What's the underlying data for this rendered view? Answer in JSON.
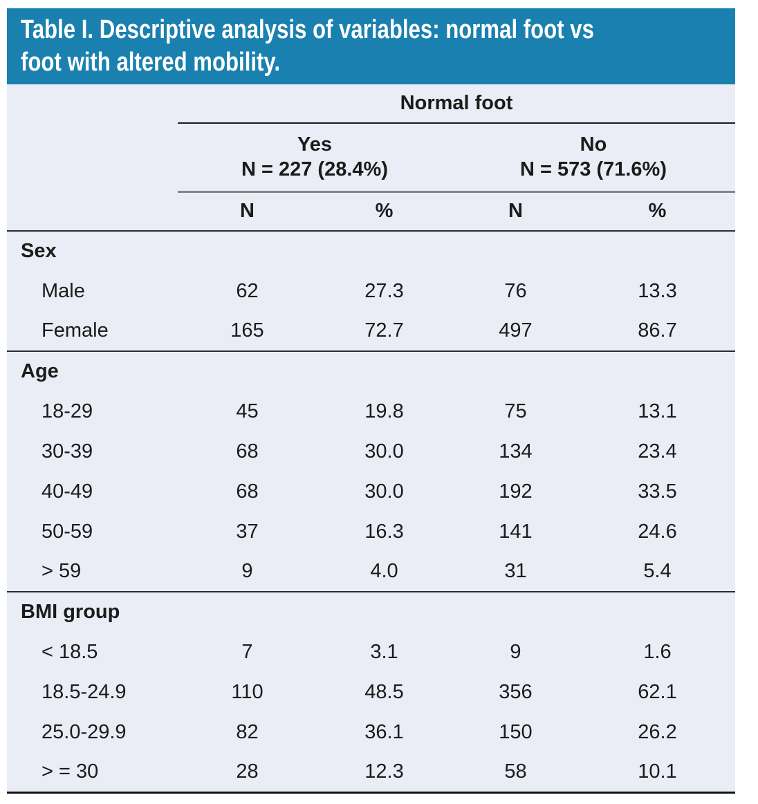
{
  "colors": {
    "header_bg": "#1a80af",
    "table_bg": "#eaedf5",
    "text": "#1b1b1b",
    "title_text": "#ffffff",
    "rule_dark": "#2b2b2b",
    "rule_gray": "#848484",
    "rule_black": "#111111"
  },
  "header": {
    "title_lines": [
      "Table I. Descriptive analysis of variables: normal foot vs",
      "foot with altered mobility."
    ],
    "span_label": "Normal foot",
    "groups": [
      {
        "label": "Yes",
        "sublabel": "N = 227 (28.4%)"
      },
      {
        "label": "No",
        "sublabel": "N = 573 (71.6%)"
      }
    ],
    "columns": [
      "N",
      "%",
      "N",
      "%"
    ]
  },
  "sections": [
    {
      "label": "Sex",
      "rows": [
        {
          "label": "Male",
          "values": [
            "62",
            "27.3",
            "76",
            "13.3"
          ]
        },
        {
          "label": "Female",
          "values": [
            "165",
            "72.7",
            "497",
            "86.7"
          ]
        }
      ]
    },
    {
      "label": "Age",
      "rows": [
        {
          "label": "18-29",
          "values": [
            "45",
            "19.8",
            "75",
            "13.1"
          ]
        },
        {
          "label": "30-39",
          "values": [
            "68",
            "30.0",
            "134",
            "23.4"
          ]
        },
        {
          "label": "40-49",
          "values": [
            "68",
            "30.0",
            "192",
            "33.5"
          ]
        },
        {
          "label": "50-59",
          "values": [
            "37",
            "16.3",
            "141",
            "24.6"
          ]
        },
        {
          "label": "> 59",
          "values": [
            "9",
            "4.0",
            "31",
            "5.4"
          ]
        }
      ]
    },
    {
      "label": "BMI group",
      "rows": [
        {
          "label": "< 18.5",
          "values": [
            "7",
            "3.1",
            "9",
            "1.6"
          ]
        },
        {
          "label": "18.5-24.9",
          "values": [
            "110",
            "48.5",
            "356",
            "62.1"
          ]
        },
        {
          "label": "25.0-29.9",
          "values": [
            "82",
            "36.1",
            "150",
            "26.2"
          ]
        },
        {
          "label": "> = 30",
          "values": [
            "28",
            "12.3",
            "58",
            "10.1"
          ]
        }
      ]
    }
  ]
}
